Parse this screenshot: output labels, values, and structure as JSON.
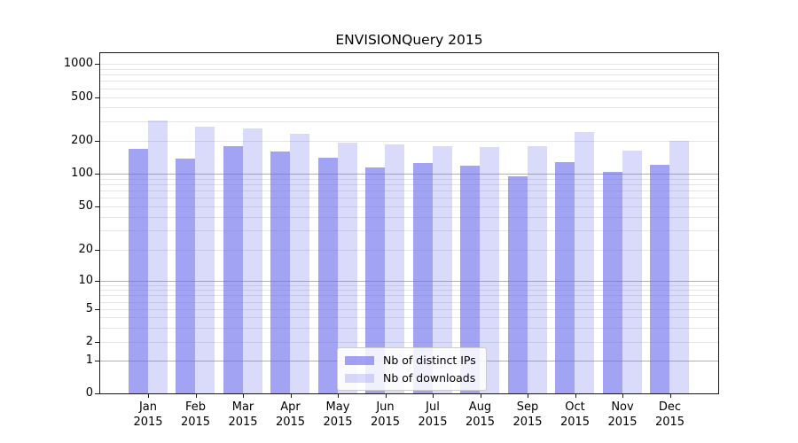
{
  "chart_data": {
    "type": "bar",
    "title": "ENVISIONQuery 2015",
    "x_axis": {
      "months": [
        "Jan",
        "Feb",
        "Mar",
        "Apr",
        "May",
        "Jun",
        "Jul",
        "Aug",
        "Sep",
        "Oct",
        "Nov",
        "Dec"
      ],
      "year_line": "2015"
    },
    "y_axis": {
      "scale": "symlog",
      "ylim": [
        0,
        1000
      ],
      "grid": "on",
      "ticks": [
        {
          "label": "1000",
          "v": 1000,
          "py": 72,
          "major": false
        },
        {
          "label": "500",
          "v": 500,
          "py": 109.5,
          "major": false
        },
        {
          "label": "200",
          "v": 200,
          "py": 158.5,
          "major": false
        },
        {
          "label": "100",
          "v": 100,
          "py": 196,
          "major": true
        },
        {
          "label": "50",
          "v": 50,
          "py": 233.3,
          "major": false
        },
        {
          "label": "20",
          "v": 20,
          "py": 282,
          "major": false
        },
        {
          "label": "10",
          "v": 10,
          "py": 316.7,
          "major": true
        },
        {
          "label": "5",
          "v": 5,
          "py": 349.3,
          "major": false
        },
        {
          "label": "2",
          "v": 2,
          "py": 386,
          "major": false
        },
        {
          "label": "1",
          "v": 1,
          "py": 407.3,
          "major": true
        },
        {
          "label": "0",
          "v": 0,
          "py": 444,
          "major": false
        }
      ],
      "minor_values": [
        900,
        800,
        700,
        600,
        400,
        300,
        90,
        80,
        70,
        60,
        40,
        30,
        9,
        8,
        7,
        6,
        4,
        3
      ]
    },
    "series": [
      {
        "key": "ips",
        "name": "Nb of distinct IPs",
        "color": "rgba(107,107,236,0.62)",
        "values": [
          168,
          136,
          176,
          160,
          139,
          113,
          125,
          118,
          94,
          127,
          104,
          120
        ]
      },
      {
        "key": "downloads",
        "name": "Nb of downloads",
        "color": "rgba(107,107,236,0.25)",
        "values": [
          303,
          265,
          257,
          230,
          192,
          184,
          177,
          173,
          176,
          238,
          161,
          199
        ]
      }
    ],
    "legend_position": "lower center"
  }
}
